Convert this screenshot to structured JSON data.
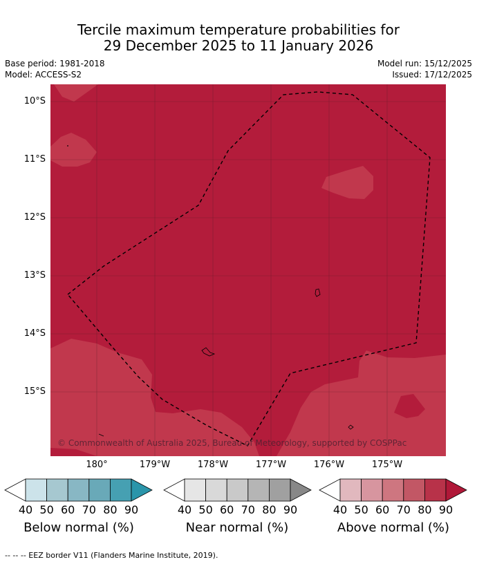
{
  "title": {
    "line1": "Tercile maximum temperature probabilities for",
    "line2": "29 December 2025 to 11 January 2026"
  },
  "meta": {
    "base_period": "Base period: 1981-2018",
    "model": "Model: ACCESS-S2",
    "model_run": "Model run: 15/12/2025",
    "issued": "Issued: 17/12/2025"
  },
  "map": {
    "lat_labels": [
      "10°S",
      "11°S",
      "12°S",
      "13°S",
      "14°S",
      "15°S"
    ],
    "lon_labels": [
      "180°",
      "179°W",
      "178°W",
      "177°W",
      "176°W",
      "175°W"
    ],
    "copyright": "© Commonwealth of Australia 2025, Bureau of Meteorology, supported by COSPPac",
    "colors": {
      "above_80_90": "#b31c3b",
      "above_70_80": "#c1384d",
      "border": "#000000"
    }
  },
  "legends": [
    {
      "title": "Below normal (%)",
      "ticks": [
        "40",
        "50",
        "60",
        "70",
        "80",
        "90"
      ],
      "colors": [
        "#ffffff",
        "#cce3ea",
        "#a6c8d0",
        "#88b7c4",
        "#69a9b8",
        "#46a0b2",
        "#2a95aa"
      ]
    },
    {
      "title": "Near normal (%)",
      "ticks": [
        "40",
        "50",
        "60",
        "70",
        "80",
        "90"
      ],
      "colors": [
        "#ffffff",
        "#e6e6e6",
        "#d9d9d9",
        "#c9c9c9",
        "#b5b5b5",
        "#a0a0a0",
        "#888888"
      ]
    },
    {
      "title": "Above normal (%)",
      "ticks": [
        "40",
        "50",
        "60",
        "70",
        "80",
        "90"
      ],
      "colors": [
        "#ffffff",
        "#e1b8be",
        "#d7959f",
        "#ce7680",
        "#c25765",
        "#b83249",
        "#b01838"
      ]
    }
  ],
  "footnote": "--  --  -- EEZ border V11 (Flanders Marine Institute, 2019)."
}
